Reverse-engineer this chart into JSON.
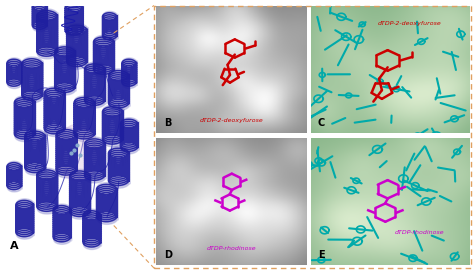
{
  "background_color": "#ffffff",
  "panel_A_label": "A",
  "panel_B_label": "B",
  "panel_C_label": "C",
  "panel_D_label": "D",
  "panel_E_label": "E",
  "label_B_text": "dTDP-2-deoxyfurose",
  "label_C_text": "dTDP-2-deoxyfurose",
  "label_D_text": "dTDP-rhodinose",
  "label_E_text": "dTDP-rhodinose",
  "label_color_red": "#cc0000",
  "label_color_magenta": "#cc00cc",
  "box_color": "#e0a060",
  "protein_blue": "#1a1aaa",
  "protein_dark": "#0d0d88",
  "protein_light": "#6666cc",
  "protein_white": "#d0d0ee",
  "helix_color": "#1f1f9f",
  "gray_surface": "#c8c8c8",
  "gray_light": "#e0e0e0",
  "green_bg": "#b8d8b8",
  "green_light": "#c8e8c8",
  "cyan_color": "#00aaaa",
  "cyan_dark": "#008888"
}
